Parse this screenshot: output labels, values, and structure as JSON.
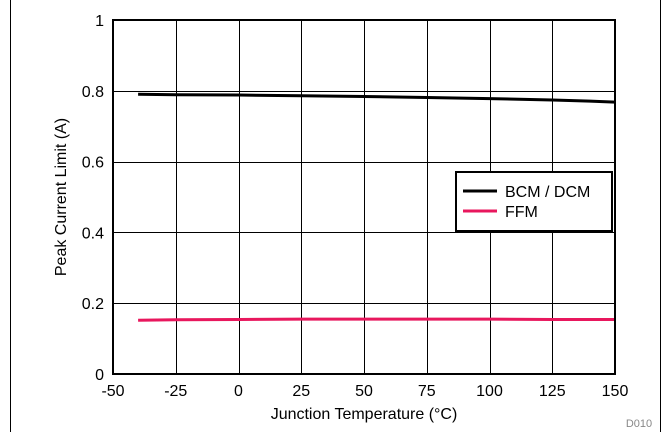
{
  "chart_data": {
    "type": "line",
    "title": "",
    "xlabel": "Junction Temperature (°C)",
    "ylabel": "Peak Current Limit (A)",
    "xlim": [
      -50,
      150
    ],
    "ylim": [
      0,
      1
    ],
    "x_ticks": [
      -50,
      -25,
      0,
      25,
      50,
      75,
      100,
      125,
      150
    ],
    "y_ticks": [
      0,
      0.2,
      0.4,
      0.6,
      0.8,
      1
    ],
    "y_tick_labels": [
      "0",
      "0.2",
      "0.4",
      "0.6",
      "0.8",
      "1"
    ],
    "grid": true,
    "legend_position": "right",
    "series": [
      {
        "name": "BCM / DCM",
        "color": "#000000",
        "x": [
          -40,
          -25,
          0,
          25,
          50,
          75,
          100,
          125,
          140,
          150
        ],
        "y": [
          0.79,
          0.789,
          0.788,
          0.786,
          0.784,
          0.781,
          0.778,
          0.774,
          0.771,
          0.768
        ]
      },
      {
        "name": "FFM",
        "color": "#e8175d",
        "x": [
          -40,
          -25,
          0,
          25,
          50,
          75,
          100,
          125,
          150
        ],
        "y": [
          0.152,
          0.153,
          0.154,
          0.155,
          0.155,
          0.155,
          0.155,
          0.154,
          0.154
        ]
      }
    ],
    "watermark": "D010"
  }
}
